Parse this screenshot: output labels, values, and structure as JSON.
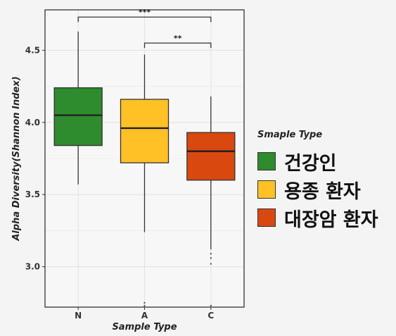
{
  "chart_data": {
    "type": "box",
    "xlabel": "Sample Type",
    "ylabel": "Alpha Diversity(Shannon Index)",
    "ylim": [
      2.72,
      4.78
    ],
    "yticks": [
      3.0,
      3.5,
      4.0,
      4.5
    ],
    "ytick_labels": [
      "3.0",
      "3.5",
      "4.0",
      "4.5"
    ],
    "categories": [
      "N",
      "A",
      "C"
    ],
    "boxes": [
      {
        "category": "N",
        "whisker_low": 3.57,
        "q1": 3.84,
        "median": 4.05,
        "q3": 4.24,
        "whisker_high": 4.63,
        "outliers": [],
        "color": "#2e8b2e"
      },
      {
        "category": "A",
        "whisker_low": 3.24,
        "q1": 3.72,
        "median": 3.96,
        "q3": 4.16,
        "whisker_high": 4.47,
        "outliers": [
          2.75,
          2.73
        ],
        "color": "#ffc125"
      },
      {
        "category": "C",
        "whisker_low": 3.12,
        "q1": 3.6,
        "median": 3.8,
        "q3": 3.93,
        "whisker_high": 4.18,
        "outliers": [
          3.09,
          3.06,
          3.02,
          2.73
        ],
        "color": "#d9480f"
      }
    ],
    "significance": [
      {
        "from": "N",
        "to": "C",
        "label": "***"
      },
      {
        "from": "A",
        "to": "C",
        "label": "**"
      }
    ],
    "grid": true,
    "legend": {
      "position": "right",
      "title": "Smaple Type",
      "items": [
        {
          "label": "건강인",
          "color": "#2e8b2e"
        },
        {
          "label": "용종 환자",
          "color": "#ffc125"
        },
        {
          "label": "대장암 환자",
          "color": "#d9480f"
        }
      ]
    }
  }
}
